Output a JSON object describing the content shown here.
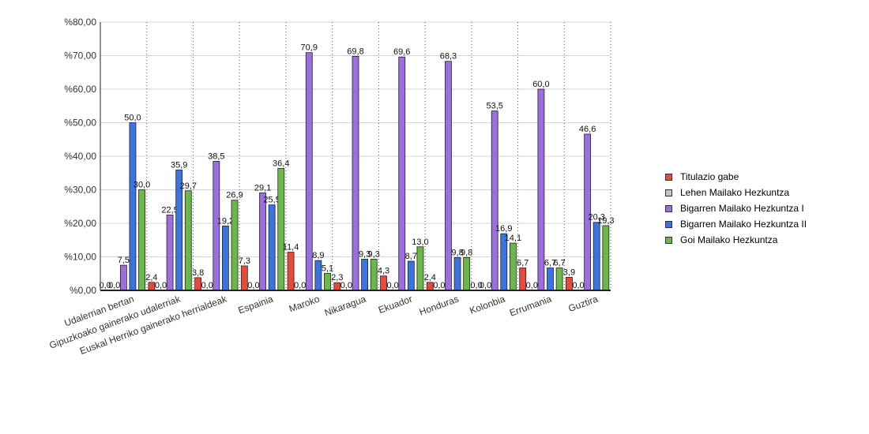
{
  "chart_data": {
    "type": "bar",
    "categories": [
      "Udalerrian bertan",
      "Gipuzkoako gainerako udalerriak",
      "Euskal Herriko gainerako herrialdeak",
      "Espainia",
      "Maroko",
      "Nikaragua",
      "Ekuador",
      "Honduras",
      "Kolonbia",
      "Errumania",
      "Guztira"
    ],
    "series": [
      {
        "name": "Titulazio gabe",
        "color": "#e8493a",
        "values": [
          0.0,
          2.4,
          3.8,
          7.3,
          11.4,
          2.3,
          4.3,
          2.4,
          0.0,
          6.7,
          3.9
        ],
        "labels": [
          "0,0",
          "2,4",
          "3,8",
          "7,3",
          "11,4",
          "2,3",
          "4,3",
          "2,4",
          "0,0",
          "6,7",
          "3,9"
        ]
      },
      {
        "name": "Lehen Mailako Hezkuntza",
        "color": "#c4c4c4",
        "values": [
          0.0,
          0.0,
          0.0,
          0.0,
          0.0,
          0.0,
          0.0,
          0.0,
          0.0,
          0.0,
          0.0
        ],
        "labels": [
          "0,0",
          "0,0",
          "0,0",
          "0,0",
          "0,0",
          "0,0",
          "0,0",
          "0,0",
          "0,0",
          "0,0",
          "0,0"
        ]
      },
      {
        "name": "Bigarren Mailako Hezkuntza I",
        "color": "#9b6fe0",
        "values": [
          7.5,
          22.5,
          38.5,
          29.1,
          70.9,
          69.8,
          69.6,
          68.3,
          53.5,
          60.0,
          46.6
        ],
        "labels": [
          "7,5",
          "22,5",
          "38,5",
          "29,1",
          "70,9",
          "69,8",
          "69,6",
          "68,3",
          "53,5",
          "60,0",
          "46,6"
        ]
      },
      {
        "name": "Bigarren Mailako Hezkuntza II",
        "color": "#3b73e3",
        "values": [
          50.0,
          35.9,
          19.2,
          25.5,
          8.9,
          9.3,
          8.7,
          9.8,
          16.9,
          6.7,
          20.3
        ],
        "labels": [
          "50,0",
          "35,9",
          "19,2",
          "25,5",
          "8,9",
          "9,3",
          "8,7",
          "9,8",
          "16,9",
          "6,7",
          "20,3"
        ]
      },
      {
        "name": "Goi Mailako Hezkuntza",
        "color": "#6ab84a",
        "values": [
          30.0,
          29.7,
          26.9,
          36.4,
          5.1,
          9.3,
          13.0,
          9.8,
          14.1,
          6.7,
          19.3
        ],
        "labels": [
          "30,0",
          "29,7",
          "26,9",
          "36,4",
          "5,1",
          "9,3",
          "13,0",
          "9,8",
          "14,1",
          "6,7",
          "19,3"
        ]
      }
    ],
    "y_ticks": [
      "%0,00",
      "%10,00",
      "%20,00",
      "%30,00",
      "%40,00",
      "%50,00",
      "%60,00",
      "%70,00",
      "%80,00"
    ],
    "ylim": [
      0,
      80
    ],
    "grid": true,
    "legend_position": "right"
  }
}
